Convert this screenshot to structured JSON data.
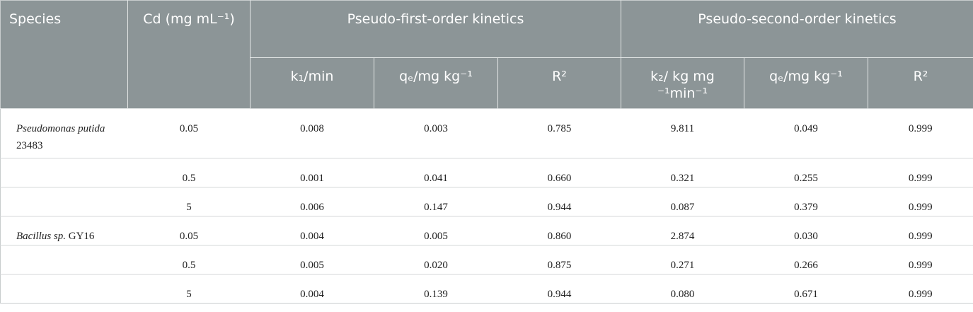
{
  "table": {
    "header": {
      "species": "Species",
      "cd": "Cd (mg mL⁻¹)",
      "first": "Pseudo-first-order kinetics",
      "second": "Pseudo-second-order kinetics",
      "sub": [
        "k₁/min",
        "qₑ/mg kg⁻¹",
        "R²",
        "k₂/ kg mg ⁻¹min⁻¹",
        "qₑ/mg kg⁻¹",
        "R²"
      ]
    },
    "rows": [
      {
        "species": {
          "name": "Pseudomonas putida",
          "strain": "23483"
        },
        "values": [
          "0.05",
          "0.008",
          "0.003",
          "0.785",
          "9.811",
          "0.049",
          "0.999"
        ]
      },
      {
        "values": [
          "0.5",
          "0.001",
          "0.041",
          "0.660",
          "0.321",
          "0.255",
          "0.999"
        ]
      },
      {
        "values": [
          "5",
          "0.006",
          "0.147",
          "0.944",
          "0.087",
          "0.379",
          "0.999"
        ]
      },
      {
        "species": {
          "name": "Bacillus sp.",
          "strain": "GY16"
        },
        "values": [
          "0.05",
          "0.004",
          "0.005",
          "0.860",
          "2.874",
          "0.030",
          "0.999"
        ]
      },
      {
        "values": [
          "0.5",
          "0.005",
          "0.020",
          "0.875",
          "0.271",
          "0.266",
          "0.999"
        ]
      },
      {
        "values": [
          "5",
          "0.004",
          "0.139",
          "0.944",
          "0.080",
          "0.671",
          "0.999"
        ]
      }
    ]
  }
}
